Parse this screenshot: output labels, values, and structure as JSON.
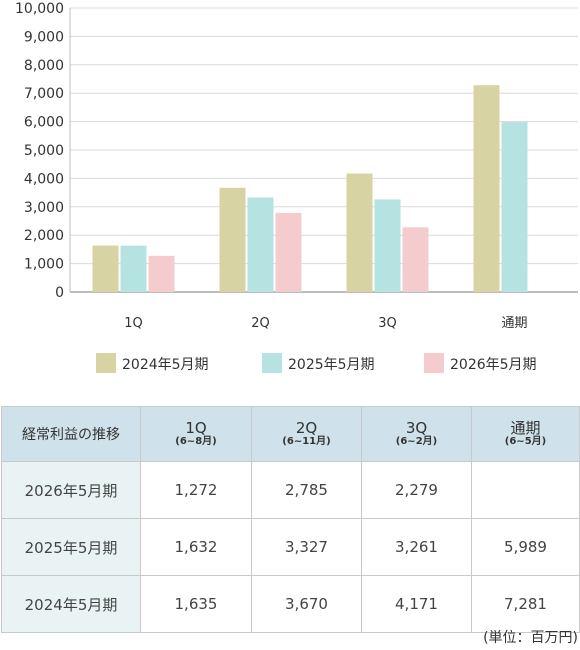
{
  "chart_data": {
    "type": "bar",
    "categories": [
      "1Q",
      "2Q",
      "3Q",
      "通期"
    ],
    "category_labels": [
      "1Q",
      "2Q",
      "3Q",
      "通期"
    ],
    "series": [
      {
        "name": "2024年5月期",
        "values": [
          1635,
          3670,
          4171,
          7281
        ],
        "color": "#d8d3a2"
      },
      {
        "name": "2025年5月期",
        "values": [
          1632,
          3327,
          3261,
          5989
        ],
        "color": "#b5e3e2"
      },
      {
        "name": "2026年5月期",
        "values": [
          1272,
          2785,
          2279,
          null
        ],
        "color": "#f4cccd"
      }
    ],
    "ylim": [
      0,
      10000
    ],
    "yticks": [
      "0",
      "1,000",
      "2,000",
      "3,000",
      "4,000",
      "5,000",
      "6,000",
      "7,000",
      "8,000",
      "9,000",
      "10,000"
    ],
    "grid": true,
    "legend_position": "bottom",
    "title": "",
    "xlabel": "",
    "ylabel": ""
  },
  "table": {
    "corner": "経常利益の推移",
    "headers": [
      {
        "q": "1Q",
        "sub": "(6~8月)"
      },
      {
        "q": "2Q",
        "sub": "(6~11月)"
      },
      {
        "q": "3Q",
        "sub": "(6~2月)"
      },
      {
        "q": "通期",
        "sub": "(6~5月)"
      }
    ],
    "rows": [
      {
        "label": "2026年5月期",
        "cells": [
          "1,272",
          "2,785",
          "2,279",
          ""
        ]
      },
      {
        "label": "2025年5月期",
        "cells": [
          "1,632",
          "3,327",
          "3,261",
          "5,989"
        ]
      },
      {
        "label": "2024年5月期",
        "cells": [
          "1,635",
          "3,670",
          "4,171",
          "7,281"
        ]
      }
    ]
  },
  "unit_note": "(単位：百万円)",
  "colors": {
    "header_bg": "#cfe1ea",
    "rowhead_bg": "#e9f3f4",
    "grid": "#d9d9d9"
  }
}
